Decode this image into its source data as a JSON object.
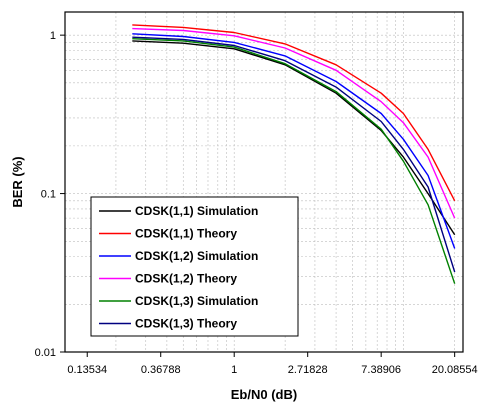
{
  "chart_data": {
    "type": "line",
    "title": "",
    "xlabel": "Eb/N0 (dB)",
    "ylabel": "BER (%)",
    "x_scale": "log",
    "y_scale": "log",
    "xlim": [
      0.1,
      22.5
    ],
    "ylim": [
      0.01,
      1.4
    ],
    "x_tick_values": [
      0.13534,
      0.36788,
      1,
      2.71828,
      7.38906,
      20.08554
    ],
    "x_tick_labels": [
      "0.13534",
      "0.36788",
      "1",
      "2.71828",
      "7.38906",
      "20.08554"
    ],
    "y_tick_values": [
      1,
      0.1,
      0.01
    ],
    "y_tick_labels": [
      "1",
      "0.1",
      "0.01"
    ],
    "grid": true,
    "legend_position": "bottom-left",
    "x": [
      0.25,
      0.5,
      1,
      2,
      4,
      7.39,
      10,
      14,
      20.09
    ],
    "series": [
      {
        "name": "CDSK(1,1) Simulation",
        "color": "#000000",
        "values": [
          0.92,
          0.89,
          0.82,
          0.65,
          0.43,
          0.25,
          0.17,
          0.1,
          0.055
        ]
      },
      {
        "name": "CDSK(1,1) Theory",
        "color": "#ff0000",
        "values": [
          1.16,
          1.12,
          1.04,
          0.88,
          0.65,
          0.43,
          0.32,
          0.19,
          0.09
        ]
      },
      {
        "name": "CDSK(1,2) Simulation",
        "color": "#0000ff",
        "values": [
          1.02,
          0.98,
          0.9,
          0.74,
          0.51,
          0.32,
          0.22,
          0.13,
          0.045
        ]
      },
      {
        "name": "CDSK(1,2) Theory",
        "color": "#ff00ff",
        "values": [
          1.1,
          1.07,
          0.99,
          0.83,
          0.6,
          0.38,
          0.28,
          0.17,
          0.07
        ]
      },
      {
        "name": "CDSK(1,3) Simulation",
        "color": "#008000",
        "values": [
          0.95,
          0.92,
          0.84,
          0.66,
          0.44,
          0.255,
          0.16,
          0.085,
          0.027
        ]
      },
      {
        "name": "CDSK(1,3) Theory",
        "color": "#000080",
        "values": [
          0.97,
          0.94,
          0.86,
          0.69,
          0.47,
          0.285,
          0.19,
          0.11,
          0.032
        ]
      }
    ]
  }
}
